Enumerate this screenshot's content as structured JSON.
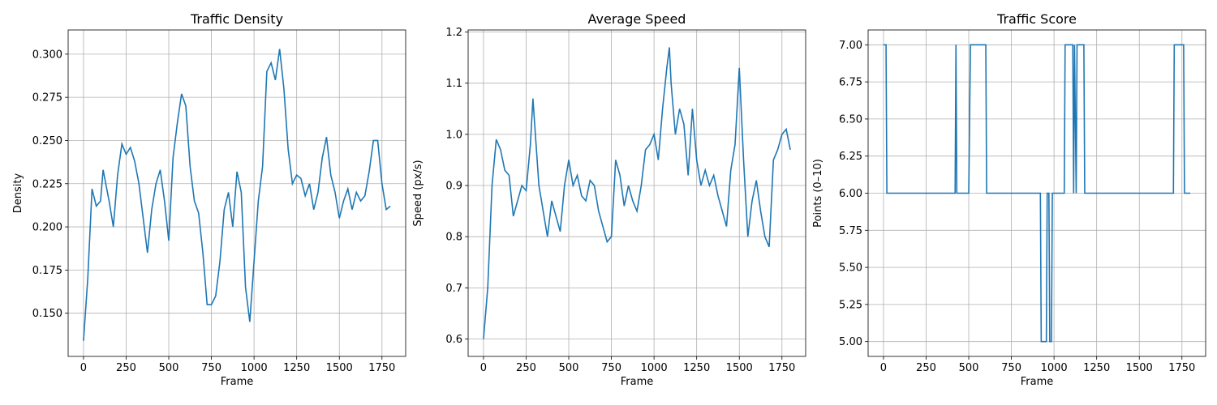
{
  "chart_data": [
    {
      "type": "line",
      "title": "Traffic Density",
      "xlabel": "Frame",
      "ylabel": "Density",
      "color": "#1f77b4",
      "grid": true,
      "x": [
        0,
        25,
        50,
        75,
        100,
        115,
        150,
        175,
        200,
        225,
        250,
        275,
        300,
        325,
        350,
        375,
        400,
        425,
        450,
        475,
        500,
        525,
        550,
        575,
        600,
        625,
        650,
        675,
        700,
        725,
        750,
        775,
        800,
        825,
        850,
        875,
        900,
        925,
        950,
        975,
        1000,
        1025,
        1050,
        1075,
        1100,
        1125,
        1150,
        1175,
        1200,
        1225,
        1250,
        1275,
        1300,
        1325,
        1350,
        1375,
        1400,
        1425,
        1450,
        1475,
        1500,
        1525,
        1550,
        1575,
        1600,
        1625,
        1650,
        1675,
        1700,
        1725,
        1750,
        1775,
        1799
      ],
      "values": [
        0.134,
        0.17,
        0.222,
        0.212,
        0.215,
        0.233,
        0.215,
        0.2,
        0.23,
        0.248,
        0.242,
        0.246,
        0.238,
        0.225,
        0.205,
        0.185,
        0.21,
        0.225,
        0.233,
        0.215,
        0.192,
        0.24,
        0.26,
        0.277,
        0.27,
        0.235,
        0.215,
        0.208,
        0.185,
        0.155,
        0.155,
        0.16,
        0.18,
        0.21,
        0.22,
        0.2,
        0.232,
        0.22,
        0.165,
        0.145,
        0.18,
        0.215,
        0.235,
        0.29,
        0.295,
        0.285,
        0.303,
        0.28,
        0.245,
        0.225,
        0.23,
        0.228,
        0.218,
        0.225,
        0.21,
        0.22,
        0.24,
        0.252,
        0.23,
        0.22,
        0.205,
        0.215,
        0.222,
        0.21,
        0.22,
        0.215,
        0.218,
        0.232,
        0.25,
        0.25,
        0.225,
        0.21,
        0.212
      ],
      "xlim": [
        -90,
        1889
      ],
      "ylim": [
        0.125,
        0.314
      ],
      "xticks": [
        0,
        250,
        500,
        750,
        1000,
        1250,
        1500,
        1750
      ],
      "yticks": [
        {
          "value": 0.15,
          "label": "0.150"
        },
        {
          "value": 0.175,
          "label": "0.175"
        },
        {
          "value": 0.2,
          "label": "0.200"
        },
        {
          "value": 0.225,
          "label": "0.225"
        },
        {
          "value": 0.25,
          "label": "0.250"
        },
        {
          "value": 0.275,
          "label": "0.275"
        },
        {
          "value": 0.3,
          "label": "0.300"
        }
      ]
    },
    {
      "type": "line",
      "title": "Average Speed",
      "xlabel": "Frame",
      "ylabel": "Speed (px/s)",
      "color": "#1f77b4",
      "grid": true,
      "x": [
        0,
        25,
        50,
        75,
        100,
        125,
        150,
        175,
        200,
        225,
        250,
        275,
        290,
        300,
        325,
        350,
        375,
        400,
        425,
        450,
        475,
        500,
        525,
        550,
        575,
        600,
        625,
        650,
        675,
        700,
        725,
        750,
        775,
        800,
        825,
        850,
        875,
        900,
        925,
        950,
        975,
        1000,
        1025,
        1050,
        1075,
        1090,
        1100,
        1125,
        1150,
        1175,
        1200,
        1225,
        1250,
        1275,
        1300,
        1325,
        1350,
        1375,
        1400,
        1425,
        1450,
        1475,
        1500,
        1525,
        1550,
        1575,
        1600,
        1625,
        1650,
        1675,
        1700,
        1725,
        1750,
        1775,
        1799
      ],
      "values": [
        0.6,
        0.7,
        0.9,
        0.99,
        0.97,
        0.93,
        0.92,
        0.84,
        0.87,
        0.9,
        0.89,
        0.98,
        1.07,
        1.02,
        0.9,
        0.85,
        0.8,
        0.87,
        0.84,
        0.81,
        0.9,
        0.95,
        0.9,
        0.92,
        0.88,
        0.87,
        0.91,
        0.9,
        0.85,
        0.82,
        0.79,
        0.8,
        0.95,
        0.92,
        0.86,
        0.9,
        0.87,
        0.85,
        0.9,
        0.97,
        0.98,
        1.0,
        0.95,
        1.05,
        1.13,
        1.17,
        1.1,
        1.0,
        1.05,
        1.02,
        0.92,
        1.05,
        0.95,
        0.9,
        0.93,
        0.9,
        0.92,
        0.88,
        0.85,
        0.82,
        0.93,
        0.98,
        1.13,
        0.95,
        0.8,
        0.87,
        0.91,
        0.85,
        0.8,
        0.78,
        0.95,
        0.97,
        1.0,
        1.01,
        0.97
      ],
      "xlim": [
        -90,
        1889
      ],
      "ylim": [
        0.566,
        1.204
      ],
      "xticks": [
        0,
        250,
        500,
        750,
        1000,
        1250,
        1500,
        1750
      ],
      "yticks": [
        0.6,
        0.7,
        0.8,
        0.9,
        {
          "value": 1.0,
          "label": "1.0"
        },
        1.1,
        1.2
      ]
    },
    {
      "type": "line",
      "title": "Traffic Score",
      "xlabel": "Frame",
      "ylabel": "Points (0–10)",
      "color": "#1f77b4",
      "grid": true,
      "x": [
        0,
        15,
        20,
        420,
        425,
        430,
        500,
        510,
        600,
        605,
        920,
        925,
        955,
        960,
        970,
        975,
        985,
        990,
        1060,
        1065,
        1110,
        1115,
        1120,
        1130,
        1135,
        1175,
        1180,
        1700,
        1705,
        1760,
        1765,
        1799
      ],
      "values": [
        7,
        7,
        6,
        6,
        7,
        6,
        6,
        7,
        7,
        6,
        6,
        5,
        5,
        6,
        6,
        5,
        5,
        6,
        6,
        7,
        7,
        6,
        7,
        6,
        7,
        7,
        6,
        6,
        7,
        7,
        6,
        6
      ],
      "xlim": [
        -90,
        1889
      ],
      "ylim": [
        4.9,
        7.1
      ],
      "xticks": [
        0,
        250,
        500,
        750,
        1000,
        1250,
        1500,
        1750
      ],
      "yticks": [
        {
          "value": 5,
          "label": "5.00"
        },
        {
          "value": 5.25,
          "label": "5.25"
        },
        {
          "value": 5.5,
          "label": "5.50"
        },
        {
          "value": 5.75,
          "label": "5.75"
        },
        {
          "value": 6,
          "label": "6.00"
        },
        {
          "value": 6.25,
          "label": "6.25"
        },
        {
          "value": 6.5,
          "label": "6.50"
        },
        {
          "value": 6.75,
          "label": "6.75"
        },
        {
          "value": 7,
          "label": "7.00"
        }
      ]
    }
  ]
}
